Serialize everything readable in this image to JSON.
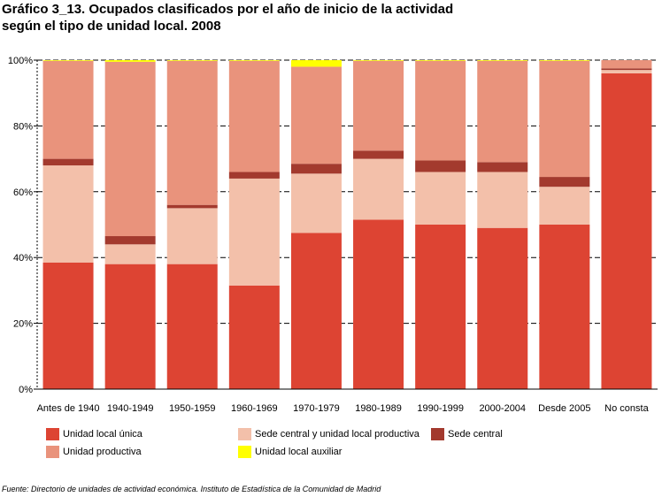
{
  "title_line1": "Gráfico 3_13. Ocupados clasificados por el año de inicio de la actividad",
  "title_line2": "según el tipo de unidad local. 2008",
  "source": "Fuente: Directorio de unidades de actividad económica. Instituto de Estadística de la Comunidad de Madrid",
  "colors": {
    "Unidad local única": "#dd4433",
    "Sede central y unidad local productiva": "#f3c0aa",
    "Sede central": "#a33a2e",
    "Unidad productiva": "#e9937c",
    "Unidad local auxiliar": "#ffff00"
  },
  "chart_data": {
    "type": "bar",
    "stacked": true,
    "categories": [
      "Antes de 1940",
      "1940-1949",
      "1950-1959",
      "1960-1969",
      "1970-1979",
      "1980-1989",
      "1990-1999",
      "2000-2004",
      "Desde 2005",
      "No consta"
    ],
    "yticks": [
      "0%",
      "20%",
      "40%",
      "60%",
      "80%",
      "100%"
    ],
    "ylim": [
      0,
      100
    ],
    "grid": "dashed horizontal",
    "legend_position": "bottom",
    "series": [
      {
        "name": "Unidad local única",
        "values": [
          38.5,
          38,
          38,
          31.5,
          47.5,
          51.5,
          50,
          49,
          50,
          96
        ]
      },
      {
        "name": "Sede central y unidad local productiva",
        "values": [
          29.5,
          6,
          17,
          32.5,
          18,
          18.5,
          16,
          17,
          11.5,
          1
        ]
      },
      {
        "name": "Sede central",
        "values": [
          2,
          2.5,
          1,
          2,
          3,
          2.5,
          3.5,
          3,
          3,
          0.5
        ]
      },
      {
        "name": "Unidad productiva",
        "values": [
          29.8,
          53,
          43.8,
          33.8,
          29.5,
          27.3,
          30.3,
          30.8,
          35.3,
          2.5
        ]
      },
      {
        "name": "Unidad local auxiliar",
        "values": [
          0.2,
          0.5,
          0.2,
          0.2,
          2,
          0.2,
          0.2,
          0.2,
          0.2,
          0
        ]
      }
    ]
  }
}
